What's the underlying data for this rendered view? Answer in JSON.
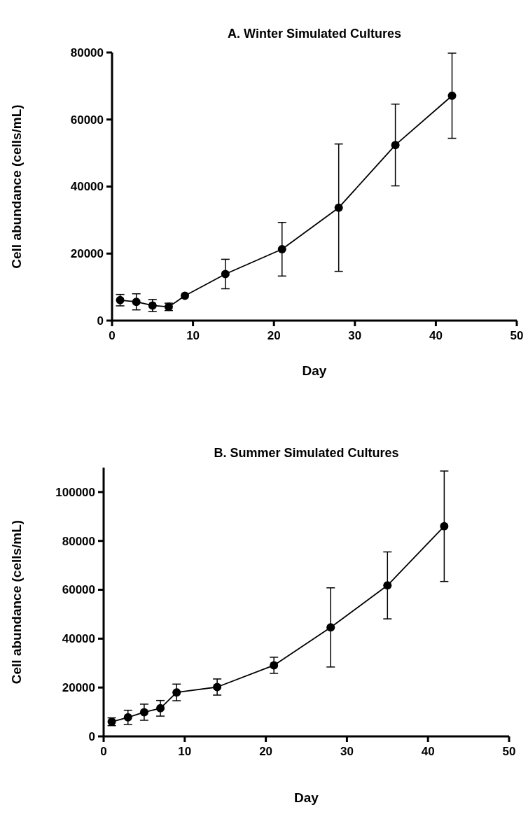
{
  "chart_data": [
    {
      "type": "line",
      "title": "A. Winter Simulated Cultures",
      "xlabel": "Day",
      "ylabel": "Cell abundance (cells/mL)",
      "x": [
        1,
        3,
        5,
        7,
        9,
        14,
        21,
        28,
        35,
        42
      ],
      "series": [
        {
          "color": "#000000",
          "values": [
            6100,
            5600,
            4500,
            4100,
            7400,
            13900,
            21300,
            33700,
            52400,
            67100
          ],
          "errors": [
            1700,
            2400,
            1800,
            1100,
            null,
            4400,
            8000,
            19000,
            12200,
            12700
          ]
        }
      ],
      "xlim": [
        0,
        50
      ],
      "xticks": [
        0,
        10,
        20,
        30,
        40,
        50
      ],
      "ylim": [
        0,
        80000
      ],
      "yticks": [
        0,
        20000,
        40000,
        60000,
        80000
      ],
      "grid": false,
      "marker": "circle",
      "line_style": "solid"
    },
    {
      "type": "line",
      "title": "B. Summer Simulated Cultures",
      "xlabel": "Day",
      "ylabel": "Cell abundance (cells/mL)",
      "x": [
        1,
        3,
        5,
        7,
        9,
        14,
        21,
        28,
        35,
        42
      ],
      "series": [
        {
          "color": "#000000",
          "values": [
            6000,
            7800,
            9900,
            11500,
            18000,
            20200,
            29100,
            44600,
            61800,
            86000
          ],
          "errors": [
            1600,
            2900,
            3300,
            3200,
            3400,
            3300,
            3300,
            16200,
            13700,
            22600
          ]
        }
      ],
      "xlim": [
        0,
        50
      ],
      "xticks": [
        0,
        10,
        20,
        30,
        40,
        50
      ],
      "ylim": [
        0,
        110000
      ],
      "yticks": [
        0,
        20000,
        40000,
        60000,
        80000,
        100000
      ],
      "grid": false,
      "marker": "circle",
      "line_style": "solid"
    }
  ]
}
